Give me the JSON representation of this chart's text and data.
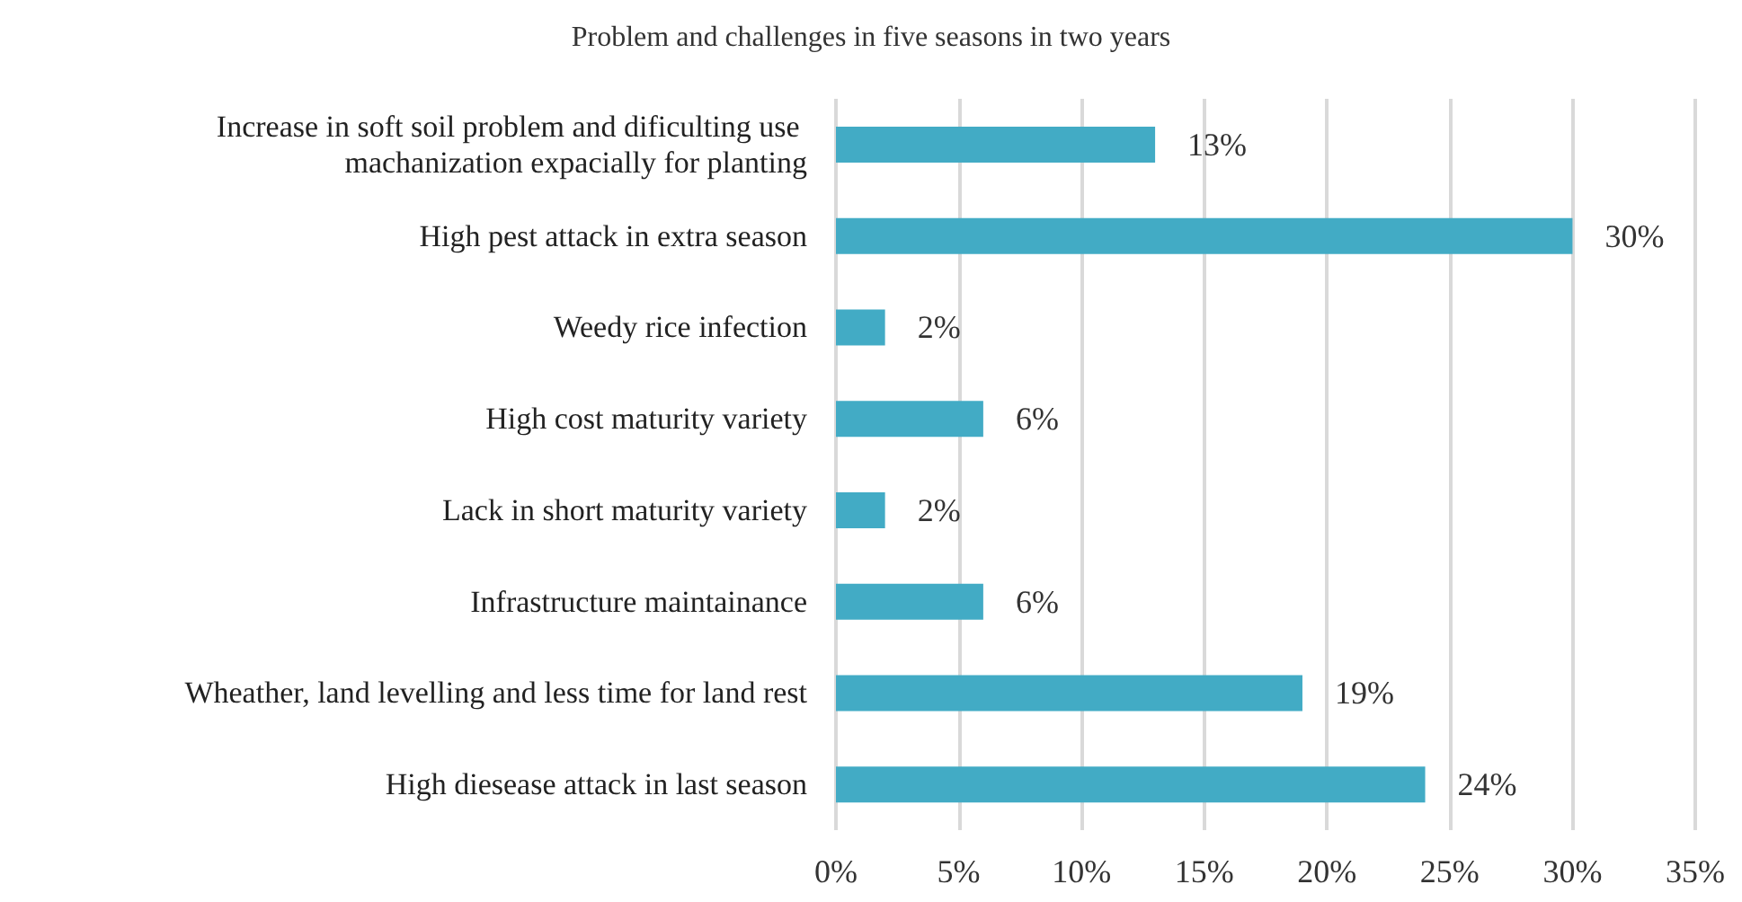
{
  "chart_data": {
    "type": "bar",
    "orientation": "horizontal",
    "title": "Problem and challenges in five seasons in two years",
    "categories": [
      "Increase in soft soil problem and dificulting use machanization expacially for planting",
      "High pest attack in extra season",
      "Weedy rice infection",
      "High cost maturity variety",
      "Lack in short maturity variety",
      "Infrastructure maintainance",
      "Wheather, land levelling and less time for land rest",
      "High diesease attack in last season"
    ],
    "values": [
      13,
      30,
      2,
      6,
      2,
      6,
      19,
      24
    ],
    "value_labels": [
      "13%",
      "30%",
      "2%",
      "6%",
      "2%",
      "6%",
      "19%",
      "24%"
    ],
    "color": "#42abc5",
    "xlim": [
      0,
      35
    ],
    "xticks": [
      {
        "value": 0,
        "label": "0%"
      },
      {
        "value": 5,
        "label": "5%"
      },
      {
        "value": 10,
        "label": "10%"
      },
      {
        "value": 15,
        "label": "15%"
      },
      {
        "value": 20,
        "label": "20%"
      },
      {
        "value": 25,
        "label": "25%"
      },
      {
        "value": 30,
        "label": "30%"
      },
      {
        "value": 35,
        "label": "35%"
      }
    ],
    "grid": "x"
  }
}
